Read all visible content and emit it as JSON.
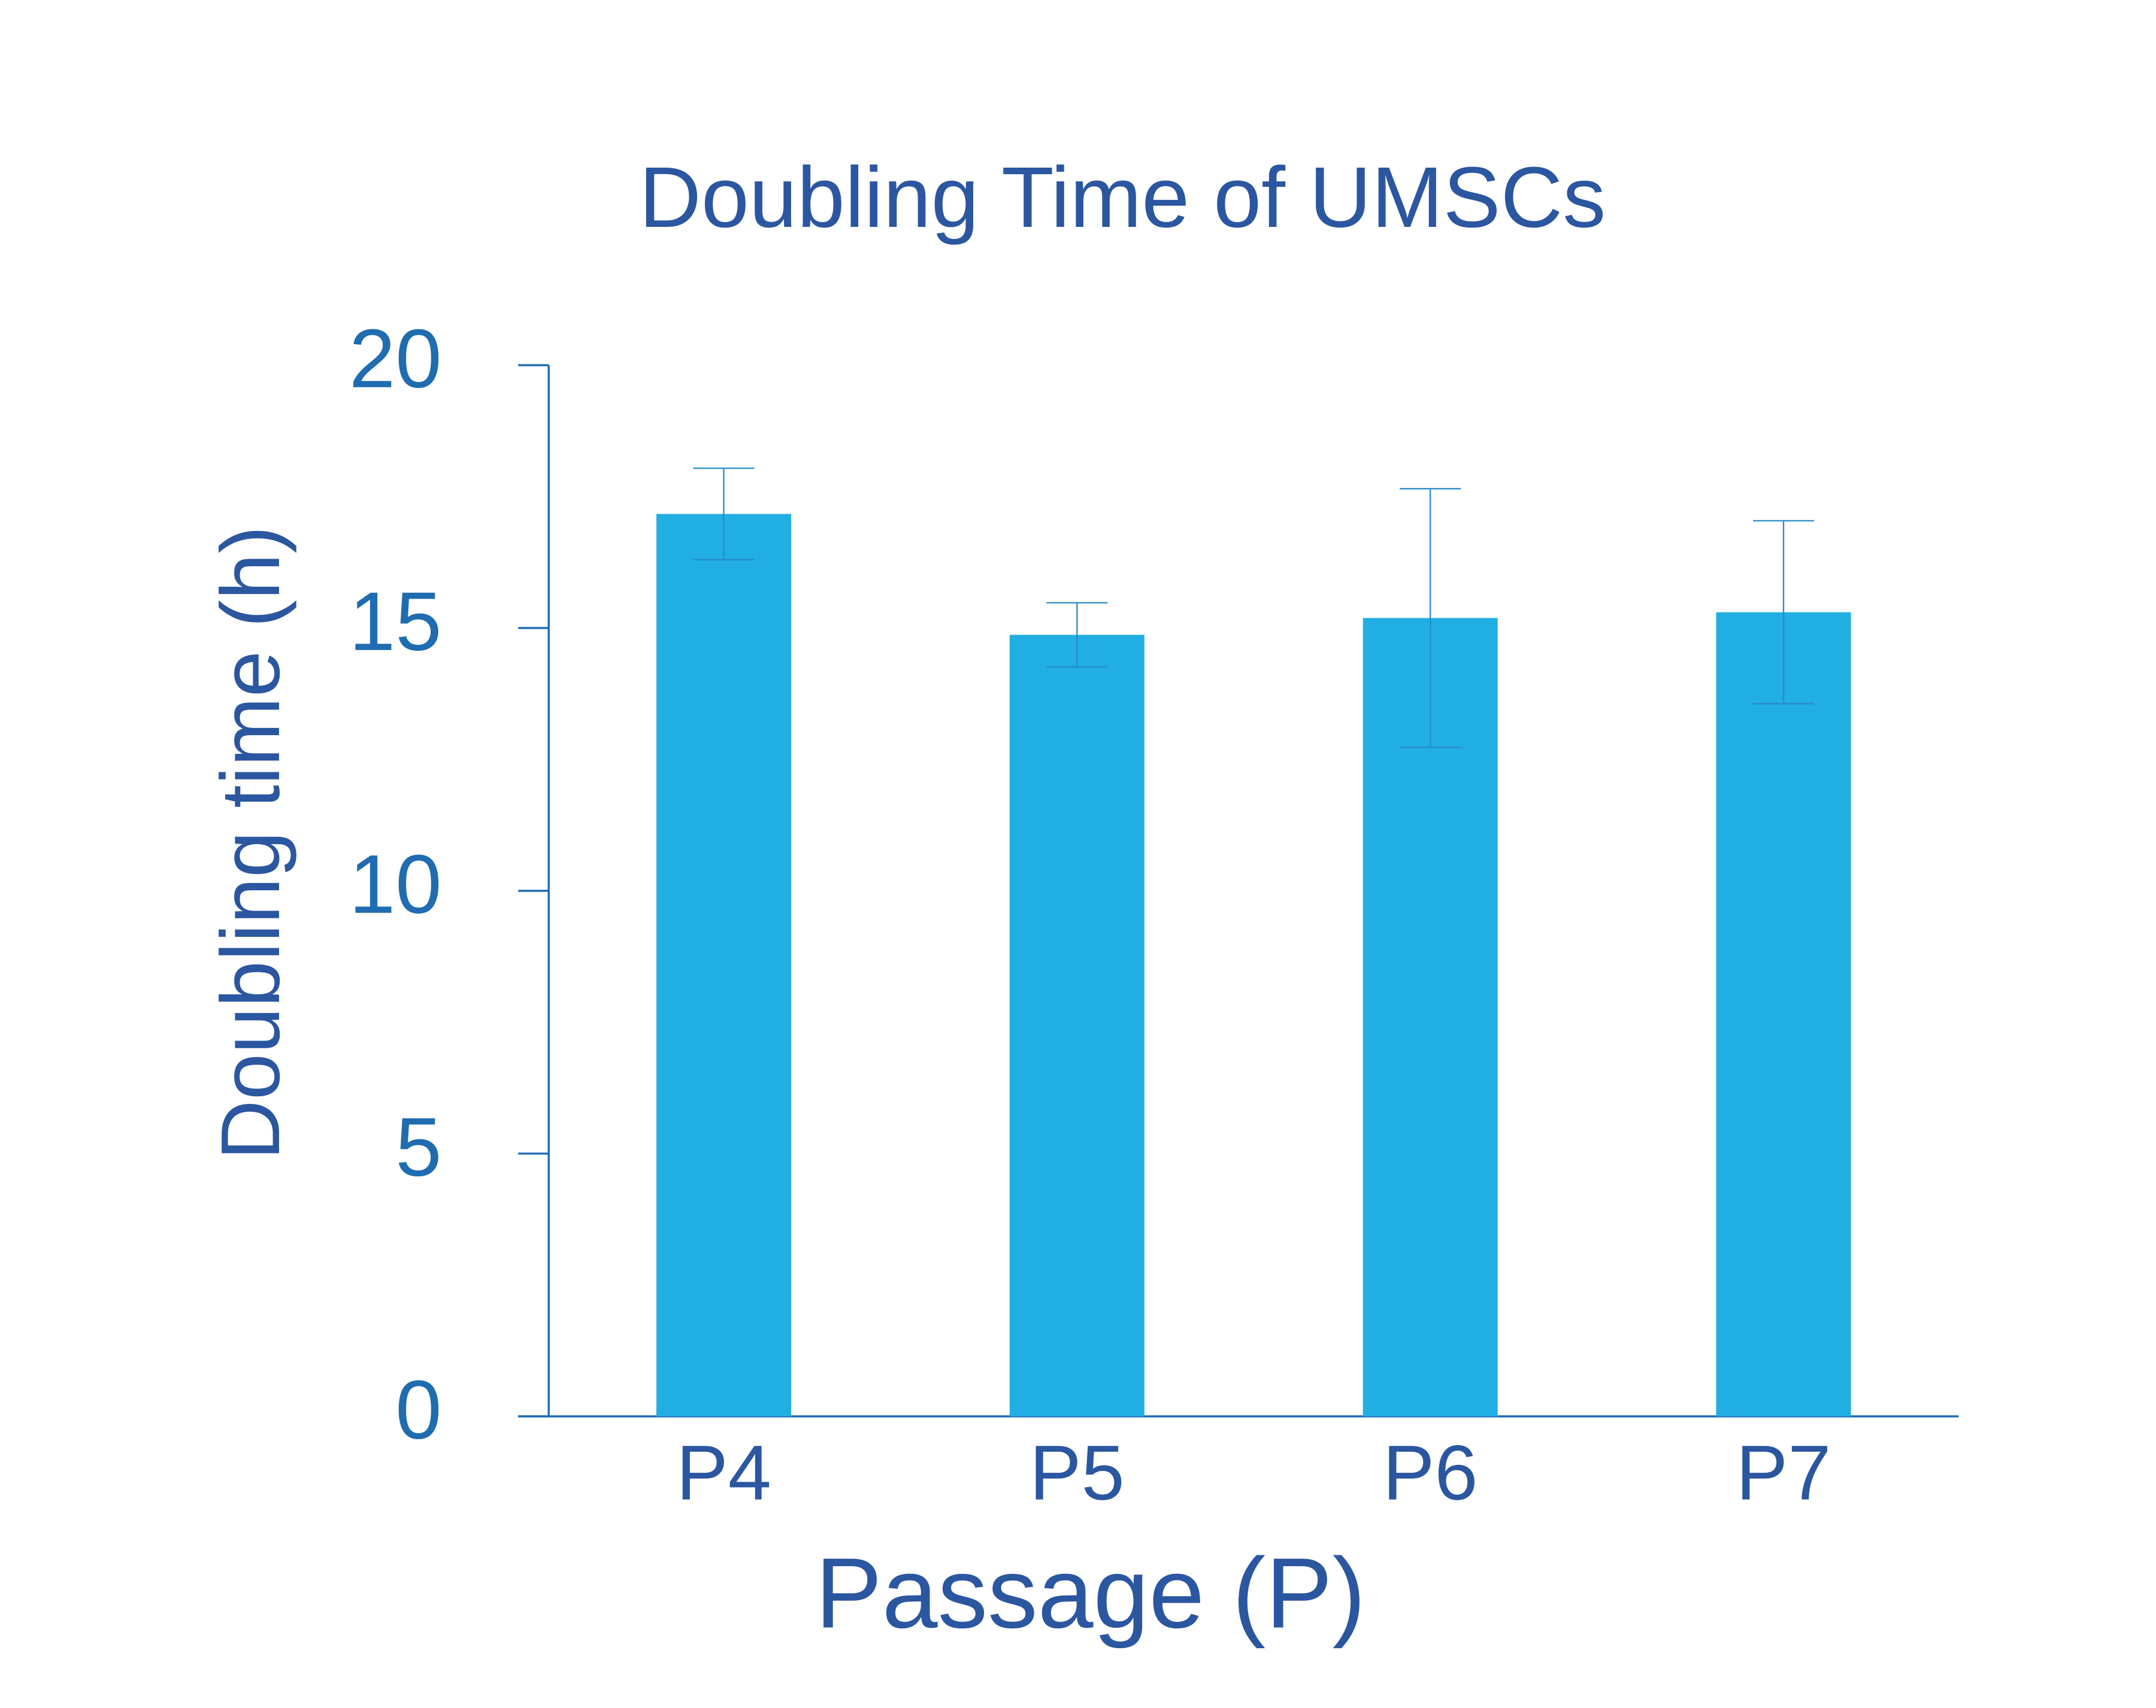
{
  "chart_data": {
    "type": "bar",
    "title": "Doubling Time of UMSCs",
    "x_label": "Passage (P)",
    "y_label": "Doubling time (h)",
    "categories": [
      "P4",
      "P5",
      "P6",
      "P7"
    ],
    "values": [
      17.17,
      14.87,
      15.19,
      15.3
    ],
    "errors": [
      0.87,
      0.61,
      2.46,
      1.74
    ],
    "color": "#21aee3",
    "error_color": "#2a8cc8",
    "ylim": [
      0,
      20
    ],
    "yticks": [
      0,
      5,
      10,
      15,
      20
    ],
    "grid": false
  }
}
